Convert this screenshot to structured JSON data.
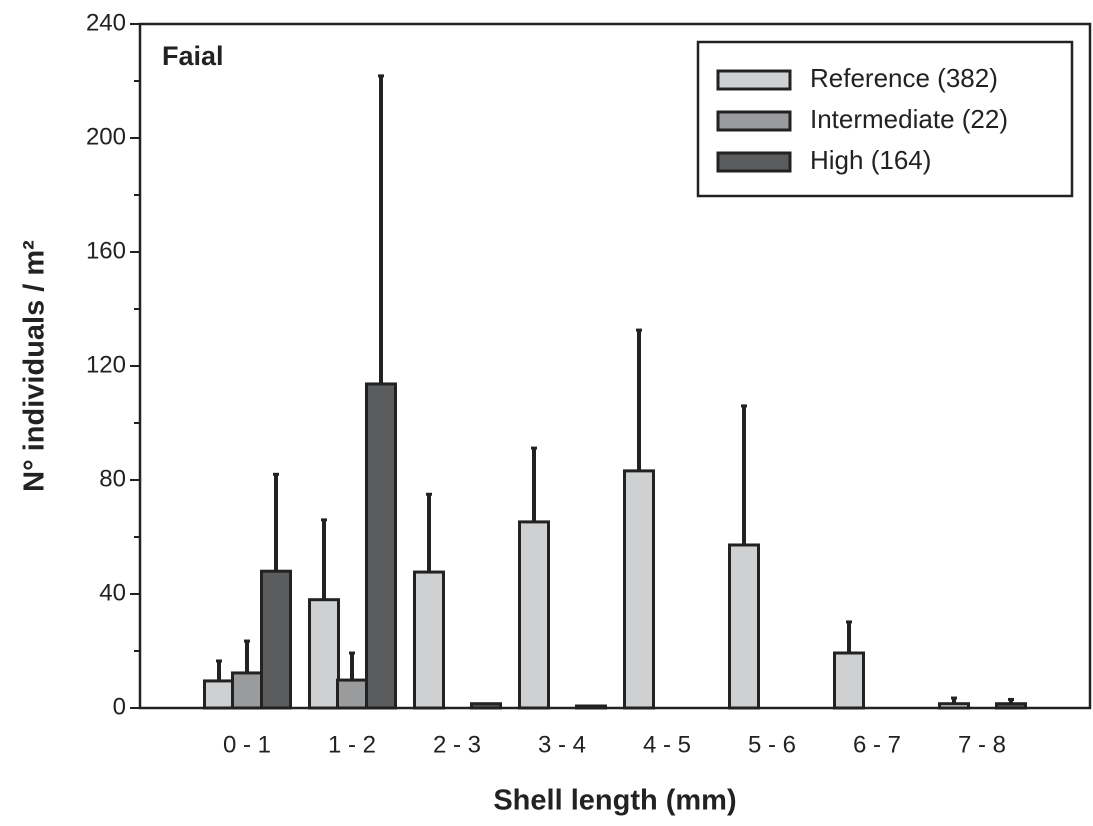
{
  "chart_data": {
    "type": "bar",
    "panel_label": "Faial",
    "x_label": "Shell length (mm)",
    "y_label": "N° individuals / m²",
    "categories": [
      "0 - 1",
      "1 - 2",
      "2 - 3",
      "3 - 4",
      "4 - 5",
      "5 - 6",
      "6 - 7",
      "7 - 8"
    ],
    "series": [
      {
        "name": "Reference (382)",
        "color": "#cfd0d2",
        "values": [
          9.5,
          38,
          47.7,
          65.3,
          83.2,
          57.2,
          19.3,
          1.5
        ],
        "errors": [
          7,
          28,
          27.3,
          25.9,
          49.4,
          48.8,
          10.9,
          2
        ]
      },
      {
        "name": "Intermediate (22)",
        "color": "#9a9b9d",
        "values": [
          12.3,
          9.8,
          null,
          null,
          null,
          null,
          null,
          null
        ],
        "errors": [
          11.2,
          9.5,
          null,
          null,
          null,
          null,
          null,
          null
        ]
      },
      {
        "name": "High (164)",
        "color": "#5b5c5e",
        "values": [
          48,
          113.7,
          1.5,
          0.7,
          null,
          null,
          null,
          1.5
        ],
        "errors": [
          34,
          108.1,
          null,
          null,
          null,
          null,
          null,
          1.5
        ]
      }
    ],
    "ylim": [
      0,
      240
    ],
    "yticks": [
      0,
      40,
      80,
      120,
      160,
      200,
      240
    ],
    "minor_yticks": [
      20,
      60,
      100,
      140,
      180,
      220
    ],
    "legend": "upper right"
  }
}
